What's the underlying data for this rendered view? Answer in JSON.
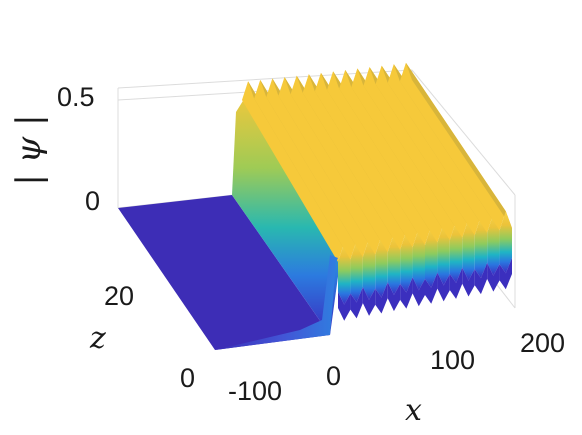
{
  "chart_data": {
    "type": "surface",
    "title": "",
    "xlabel": "x",
    "ylabel": "z",
    "zlabel": "| ψ |",
    "x_range": [
      -100,
      200
    ],
    "y_range": [
      0,
      40
    ],
    "z_range": [
      0,
      0.55
    ],
    "x_ticks": [
      "-100",
      "0",
      "100",
      "200"
    ],
    "y_ticks": [
      "0",
      "20"
    ],
    "z_ticks": [
      "0",
      "0.5"
    ],
    "surface": {
      "description_levels": {
        "x_below_0": 0.0,
        "x_above_0_base": 0.35,
        "x_above_0_peak": 0.5
      },
      "front_edge_x": 0,
      "ridge_count": 14,
      "colormap": "parula"
    },
    "colors": {
      "low": "#3e26a8",
      "mid": "#2db0c0",
      "high": "#f9cc37",
      "grid": "#e3e3e3"
    }
  }
}
